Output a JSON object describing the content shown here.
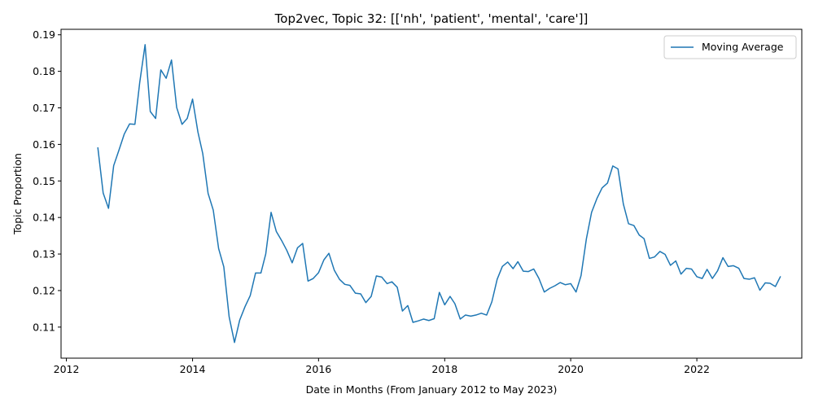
{
  "chart_data": {
    "type": "line",
    "title": "Top2vec, Topic 32: [['nh', 'patient', 'mental', 'care']]",
    "xlabel": "Date in Months (From January 2012 to May 2023)",
    "ylabel": "Topic Proportion",
    "xlim": [
      "2011-12-01",
      "2023-09-01"
    ],
    "ylim": [
      0.1015,
      0.1915
    ],
    "x_ticks": [
      {
        "date": "2012-01-01",
        "label": "2012"
      },
      {
        "date": "2014-01-01",
        "label": "2014"
      },
      {
        "date": "2016-01-01",
        "label": "2016"
      },
      {
        "date": "2018-01-01",
        "label": "2018"
      },
      {
        "date": "2020-01-01",
        "label": "2020"
      },
      {
        "date": "2022-01-01",
        "label": "2022"
      }
    ],
    "y_ticks": [
      0.11,
      0.12,
      0.13,
      0.14,
      0.15,
      0.16,
      0.17,
      0.18,
      0.19
    ],
    "y_tick_labels": [
      "0.11",
      "0.12",
      "0.13",
      "0.14",
      "0.15",
      "0.16",
      "0.17",
      "0.18",
      "0.19"
    ],
    "grid": false,
    "legend": "top-right",
    "series": [
      {
        "name": "Moving Average",
        "color": "#1f77b4",
        "points": [
          [
            "2012-07-01",
            0.1592
          ],
          [
            "2012-08-01",
            0.1467
          ],
          [
            "2012-09-01",
            0.1425
          ],
          [
            "2012-10-01",
            0.1542
          ],
          [
            "2012-11-01",
            0.1585
          ],
          [
            "2012-12-01",
            0.1628
          ],
          [
            "2013-01-01",
            0.1656
          ],
          [
            "2013-02-01",
            0.1655
          ],
          [
            "2013-03-01",
            0.177
          ],
          [
            "2013-04-01",
            0.1873
          ],
          [
            "2013-05-01",
            0.169
          ],
          [
            "2013-06-01",
            0.1671
          ],
          [
            "2013-07-01",
            0.1804
          ],
          [
            "2013-08-01",
            0.1781
          ],
          [
            "2013-09-01",
            0.1831
          ],
          [
            "2013-10-01",
            0.1701
          ],
          [
            "2013-11-01",
            0.1655
          ],
          [
            "2013-12-01",
            0.1671
          ],
          [
            "2014-01-01",
            0.1724
          ],
          [
            "2014-02-01",
            0.1634
          ],
          [
            "2014-03-01",
            0.1575
          ],
          [
            "2014-04-01",
            0.1466
          ],
          [
            "2014-05-01",
            0.142
          ],
          [
            "2014-06-01",
            0.1315
          ],
          [
            "2014-07-01",
            0.1265
          ],
          [
            "2014-08-01",
            0.1128
          ],
          [
            "2014-09-01",
            0.1058
          ],
          [
            "2014-10-01",
            0.1119
          ],
          [
            "2014-11-01",
            0.1156
          ],
          [
            "2014-12-01",
            0.1186
          ],
          [
            "2015-01-01",
            0.1248
          ],
          [
            "2015-02-01",
            0.1248
          ],
          [
            "2015-03-01",
            0.13
          ],
          [
            "2015-04-01",
            0.1414
          ],
          [
            "2015-05-01",
            0.1362
          ],
          [
            "2015-06-01",
            0.1337
          ],
          [
            "2015-07-01",
            0.131
          ],
          [
            "2015-08-01",
            0.1276
          ],
          [
            "2015-09-01",
            0.1317
          ],
          [
            "2015-10-01",
            0.1329
          ],
          [
            "2015-11-01",
            0.1226
          ],
          [
            "2015-12-01",
            0.1233
          ],
          [
            "2016-01-01",
            0.1249
          ],
          [
            "2016-02-01",
            0.1284
          ],
          [
            "2016-03-01",
            0.1302
          ],
          [
            "2016-04-01",
            0.1256
          ],
          [
            "2016-05-01",
            0.1231
          ],
          [
            "2016-06-01",
            0.1217
          ],
          [
            "2016-07-01",
            0.1214
          ],
          [
            "2016-08-01",
            0.1193
          ],
          [
            "2016-09-01",
            0.1191
          ],
          [
            "2016-10-01",
            0.1167
          ],
          [
            "2016-11-01",
            0.1184
          ],
          [
            "2016-12-01",
            0.124
          ],
          [
            "2017-01-01",
            0.1237
          ],
          [
            "2017-02-01",
            0.1219
          ],
          [
            "2017-03-01",
            0.1224
          ],
          [
            "2017-04-01",
            0.1209
          ],
          [
            "2017-05-01",
            0.1144
          ],
          [
            "2017-06-01",
            0.1159
          ],
          [
            "2017-07-01",
            0.1113
          ],
          [
            "2017-08-01",
            0.1117
          ],
          [
            "2017-09-01",
            0.1122
          ],
          [
            "2017-10-01",
            0.1118
          ],
          [
            "2017-11-01",
            0.1123
          ],
          [
            "2017-12-01",
            0.1195
          ],
          [
            "2018-01-01",
            0.1161
          ],
          [
            "2018-02-01",
            0.1184
          ],
          [
            "2018-03-01",
            0.1164
          ],
          [
            "2018-04-01",
            0.1122
          ],
          [
            "2018-05-01",
            0.1133
          ],
          [
            "2018-06-01",
            0.113
          ],
          [
            "2018-07-01",
            0.1133
          ],
          [
            "2018-08-01",
            0.1138
          ],
          [
            "2018-09-01",
            0.1133
          ],
          [
            "2018-10-01",
            0.1169
          ],
          [
            "2018-11-01",
            0.1231
          ],
          [
            "2018-12-01",
            0.1266
          ],
          [
            "2019-01-01",
            0.1278
          ],
          [
            "2019-02-01",
            0.126
          ],
          [
            "2019-03-01",
            0.1279
          ],
          [
            "2019-04-01",
            0.1253
          ],
          [
            "2019-05-01",
            0.1252
          ],
          [
            "2019-06-01",
            0.1259
          ],
          [
            "2019-07-01",
            0.1233
          ],
          [
            "2019-08-01",
            0.1196
          ],
          [
            "2019-09-01",
            0.1206
          ],
          [
            "2019-10-01",
            0.1213
          ],
          [
            "2019-11-01",
            0.1222
          ],
          [
            "2019-12-01",
            0.1216
          ],
          [
            "2020-01-01",
            0.1219
          ],
          [
            "2020-02-01",
            0.1196
          ],
          [
            "2020-03-01",
            0.1241
          ],
          [
            "2020-04-01",
            0.1342
          ],
          [
            "2020-05-01",
            0.1414
          ],
          [
            "2020-06-01",
            0.1452
          ],
          [
            "2020-07-01",
            0.1481
          ],
          [
            "2020-08-01",
            0.1494
          ],
          [
            "2020-09-01",
            0.1541
          ],
          [
            "2020-10-01",
            0.1533
          ],
          [
            "2020-11-01",
            0.1437
          ],
          [
            "2020-12-01",
            0.1383
          ],
          [
            "2021-01-01",
            0.1378
          ],
          [
            "2021-02-01",
            0.1352
          ],
          [
            "2021-03-01",
            0.1342
          ],
          [
            "2021-04-01",
            0.1288
          ],
          [
            "2021-05-01",
            0.1292
          ],
          [
            "2021-06-01",
            0.1307
          ],
          [
            "2021-07-01",
            0.1299
          ],
          [
            "2021-08-01",
            0.1269
          ],
          [
            "2021-09-01",
            0.1281
          ],
          [
            "2021-10-01",
            0.1245
          ],
          [
            "2021-11-01",
            0.1261
          ],
          [
            "2021-12-01",
            0.1259
          ],
          [
            "2022-01-01",
            0.1238
          ],
          [
            "2022-02-01",
            0.1233
          ],
          [
            "2022-03-01",
            0.1258
          ],
          [
            "2022-04-01",
            0.1233
          ],
          [
            "2022-05-01",
            0.1254
          ],
          [
            "2022-06-01",
            0.129
          ],
          [
            "2022-07-01",
            0.1266
          ],
          [
            "2022-08-01",
            0.1268
          ],
          [
            "2022-09-01",
            0.1261
          ],
          [
            "2022-10-01",
            0.1233
          ],
          [
            "2022-11-01",
            0.1231
          ],
          [
            "2022-12-01",
            0.1235
          ],
          [
            "2023-01-01",
            0.1201
          ],
          [
            "2023-02-01",
            0.1221
          ],
          [
            "2023-03-01",
            0.122
          ],
          [
            "2023-04-01",
            0.1211
          ],
          [
            "2023-05-01",
            0.1239
          ]
        ]
      }
    ]
  }
}
